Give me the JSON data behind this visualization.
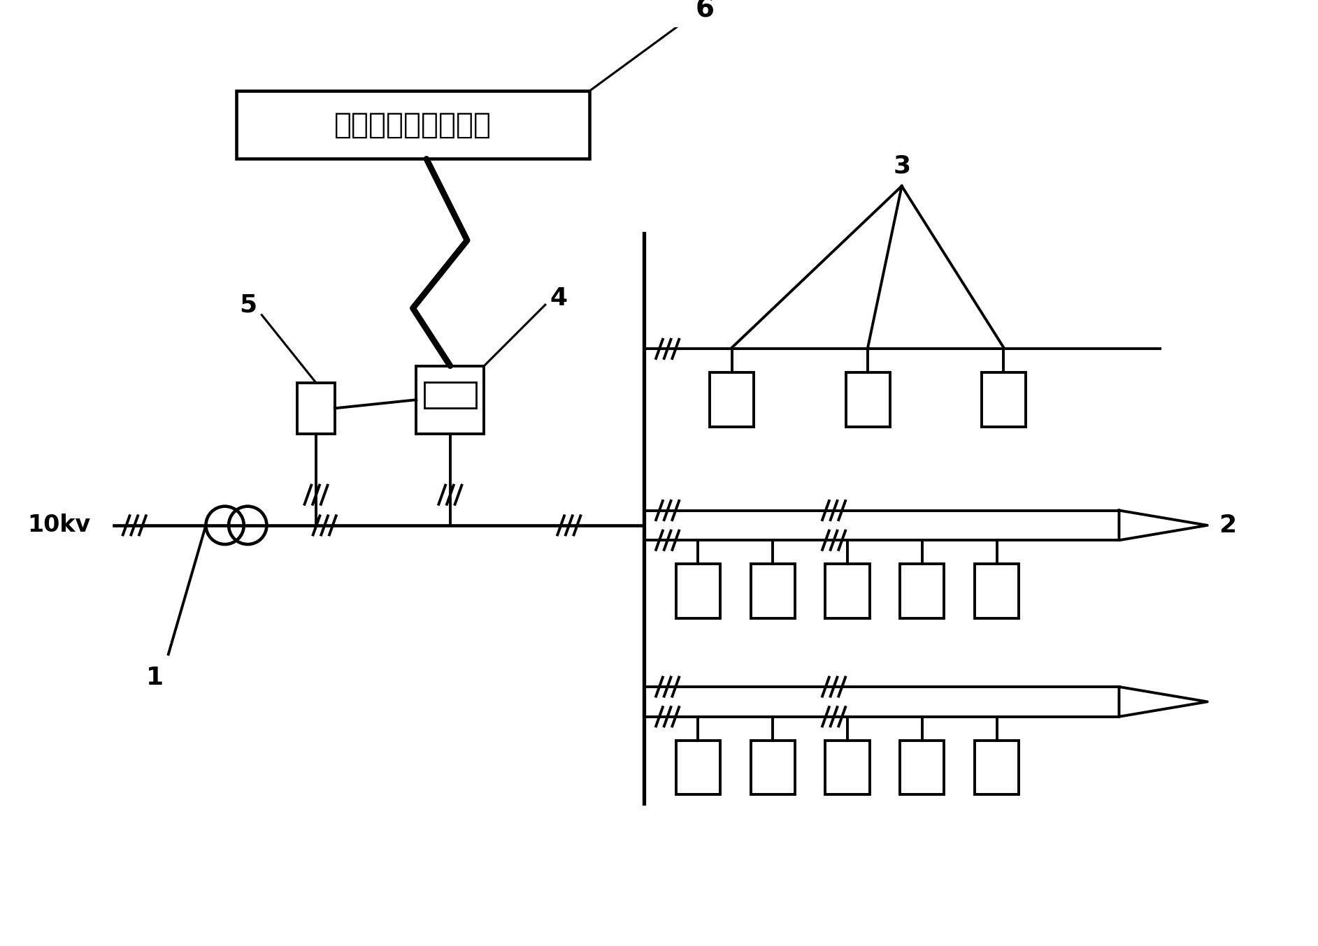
{
  "box_label": "电能量采集系统主站",
  "label_6": "6",
  "label_5": "5",
  "label_4": "4",
  "label_3": "3",
  "label_2": "2",
  "label_1": "1",
  "label_10kv": "10kv",
  "bg_color": "#ffffff",
  "line_color": "#000000",
  "lw": 2.8
}
